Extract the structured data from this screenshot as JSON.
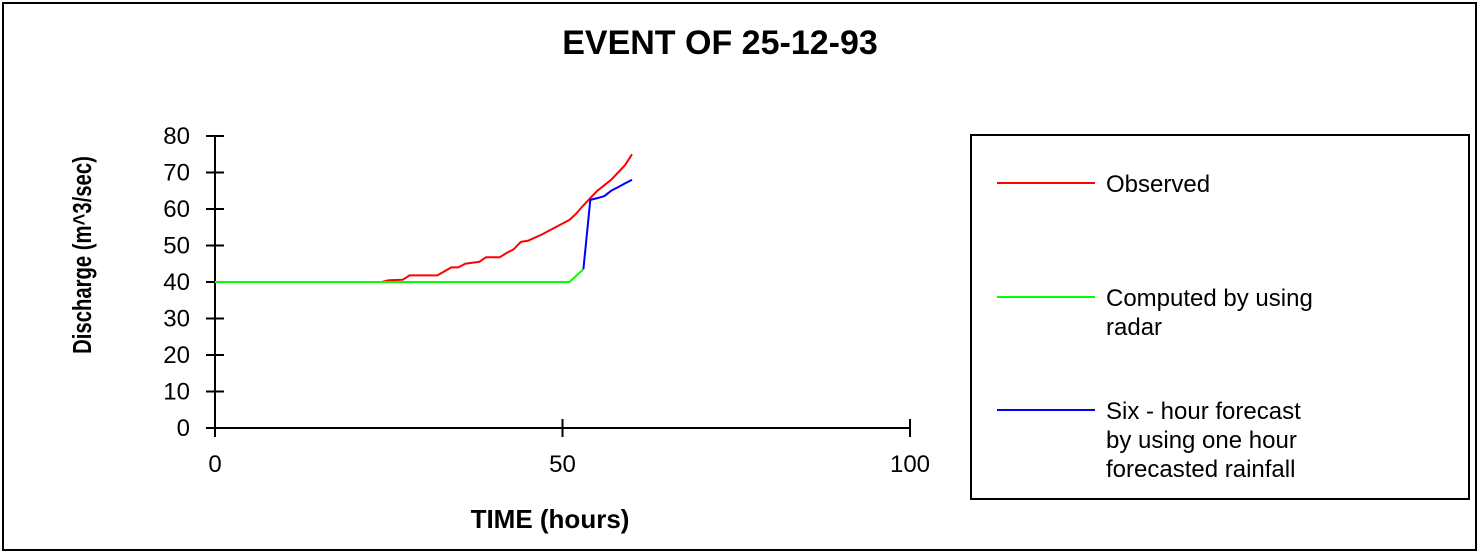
{
  "chart_data": {
    "type": "line",
    "title": "EVENT OF 25-12-93",
    "xlabel": "TIME (hours)",
    "ylabel": "Discharge (m^3/sec)",
    "xlim": [
      0,
      100
    ],
    "ylim": [
      0,
      80
    ],
    "x_ticks": [
      "0",
      "50",
      "100"
    ],
    "y_ticks": [
      "0",
      "10",
      "20",
      "30",
      "40",
      "50",
      "60",
      "70",
      "80"
    ],
    "grid": false,
    "legend_position": "right",
    "series": [
      {
        "name": "Observed",
        "color": "#ff0000",
        "points": [
          [
            0,
            40
          ],
          [
            24,
            40
          ],
          [
            25,
            40.5
          ],
          [
            27,
            40.6
          ],
          [
            28,
            41.8
          ],
          [
            32,
            41.8
          ],
          [
            34,
            44
          ],
          [
            35,
            44
          ],
          [
            36,
            45
          ],
          [
            37,
            45.3
          ],
          [
            38,
            45.5
          ],
          [
            39,
            46.8
          ],
          [
            41,
            46.8
          ],
          [
            42,
            48
          ],
          [
            43,
            49
          ],
          [
            44,
            51
          ],
          [
            45,
            51.3
          ],
          [
            47,
            53
          ],
          [
            49,
            55
          ],
          [
            51,
            57
          ],
          [
            52,
            58.8
          ],
          [
            53,
            61
          ],
          [
            54,
            63
          ],
          [
            55,
            65
          ],
          [
            56,
            66.5
          ],
          [
            57,
            68
          ],
          [
            58,
            70
          ],
          [
            59,
            72
          ],
          [
            60,
            75
          ]
        ]
      },
      {
        "name": "Computed by using radar",
        "color": "#00ff00",
        "points": [
          [
            0,
            40
          ],
          [
            51,
            40
          ],
          [
            53,
            43.5
          ]
        ]
      },
      {
        "name": "Six - hour forecast by using one hour forecasted rainfall",
        "color": "#0000ff",
        "points": [
          [
            53,
            43.5
          ],
          [
            54,
            62.5
          ],
          [
            55,
            63
          ],
          [
            56,
            63.5
          ],
          [
            57,
            65
          ],
          [
            58,
            66
          ],
          [
            59,
            67
          ],
          [
            60,
            68
          ]
        ]
      }
    ]
  },
  "legend": {
    "entries": [
      {
        "lines": [
          "Observed"
        ]
      },
      {
        "lines": [
          "Computed by using",
          "radar"
        ]
      },
      {
        "lines": [
          "Six - hour forecast",
          "by using one hour",
          "forecasted rainfall"
        ]
      }
    ]
  }
}
